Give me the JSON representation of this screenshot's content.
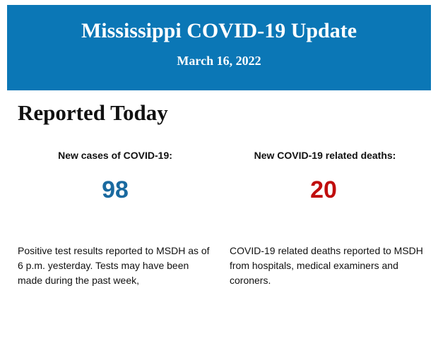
{
  "header": {
    "title": "Mississippi COVID-19 Update",
    "date": "March 16, 2022"
  },
  "section": {
    "heading": "Reported Today",
    "stats": [
      {
        "label": "New cases of COVID-19:",
        "value": "98",
        "description": "Positive test results reported to MSDH as of 6 p.m. yesterday. Tests may have been made during the past week,"
      },
      {
        "label": "New COVID-19 related deaths:",
        "value": "20",
        "description": "COVID-19 related deaths reported to MSDH from hospitals, medical examiners and coroners."
      }
    ]
  }
}
